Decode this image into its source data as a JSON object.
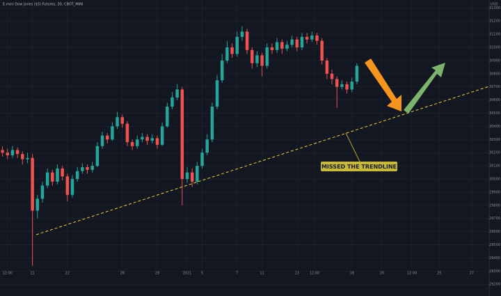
{
  "chart_data": {
    "type": "candlestick",
    "title": "E-mini Dow Jones ($5) Futures, 30, CBOT_MINI",
    "currency": "USD",
    "annotation": "MISSED THE TRENDLINE",
    "up_color": "#26a69a",
    "down_color": "#ef5350",
    "grid": true,
    "open": [
      30220,
      30200,
      30180,
      30220,
      30190,
      30150,
      30160,
      29760,
      29850,
      29950,
      30050,
      29980,
      30080,
      30020,
      29880,
      30000,
      30060,
      30090,
      30070,
      30100,
      30250,
      30330,
      30300,
      30400,
      30470,
      30420,
      30280,
      30250,
      30300,
      30320,
      30290,
      30310,
      30260,
      30400,
      30550,
      30620,
      30680,
      30000,
      30050,
      29980,
      30100,
      30200,
      30300,
      30550,
      30750,
      30900,
      31000,
      30950,
      31080,
      31120,
      30980,
      30880,
      30940,
      30860,
      31000,
      30980,
      31040,
      30990,
      31020,
      31060,
      31000,
      31080,
      31060,
      31090,
      31050,
      30900,
      30800,
      30760,
      30700,
      30720,
      30680,
      30740
    ],
    "close": [
      30200,
      30180,
      30220,
      30190,
      30150,
      30160,
      29760,
      29850,
      29950,
      30050,
      29980,
      30080,
      30020,
      29880,
      30000,
      30060,
      30090,
      30070,
      30100,
      30250,
      30330,
      30300,
      30400,
      30470,
      30420,
      30280,
      30250,
      30300,
      30320,
      30290,
      30310,
      30260,
      30400,
      30550,
      30620,
      30680,
      30000,
      30050,
      29980,
      30100,
      30200,
      30300,
      30550,
      30750,
      30900,
      31000,
      30950,
      31080,
      31120,
      30980,
      30880,
      30940,
      30860,
      31000,
      30980,
      31040,
      30990,
      31020,
      31060,
      31000,
      31080,
      31060,
      31090,
      31050,
      30900,
      30800,
      30760,
      30700,
      30720,
      30680,
      30740,
      30860
    ],
    "high": [
      30250,
      30230,
      30250,
      30240,
      30210,
      30200,
      30190,
      29880,
      29980,
      30080,
      30070,
      30110,
      30100,
      30040,
      30030,
      30090,
      30120,
      30110,
      30130,
      30280,
      30360,
      30350,
      30430,
      30510,
      30490,
      30440,
      30300,
      30330,
      30350,
      30340,
      30340,
      30330,
      30430,
      30580,
      30660,
      30720,
      30700,
      30090,
      30080,
      30130,
      30230,
      30340,
      30580,
      30790,
      30950,
      31050,
      31030,
      31120,
      31160,
      31140,
      31000,
      30970,
      30960,
      31030,
      31030,
      31070,
      31060,
      31050,
      31090,
      31080,
      31110,
      31110,
      31120,
      31110,
      31070,
      30920,
      30830,
      30780,
      30750,
      30740,
      30770,
      30880
    ],
    "low": [
      30170,
      30150,
      30160,
      30160,
      30110,
      30120,
      29340,
      29700,
      29820,
      29930,
      29950,
      29960,
      29990,
      29830,
      29860,
      29980,
      30040,
      30040,
      30050,
      30090,
      30230,
      30270,
      30290,
      30380,
      30390,
      30250,
      30220,
      30230,
      30280,
      30260,
      30270,
      30230,
      30250,
      30390,
      30530,
      30600,
      29800,
      29970,
      29940,
      29960,
      30080,
      30180,
      30280,
      30530,
      30730,
      30880,
      30920,
      30930,
      31050,
      30950,
      30840,
      30850,
      30780,
      30840,
      30950,
      30960,
      30950,
      30970,
      31000,
      30970,
      30980,
      31030,
      31040,
      31020,
      30870,
      30760,
      30720,
      30540,
      30680,
      30650,
      30660,
      30720
    ],
    "xlim": [
      -0.5,
      97.5
    ],
    "xticks": [
      {
        "value": 1,
        "label": "12:00"
      },
      {
        "value": 6,
        "label": "21"
      },
      {
        "value": 13,
        "label": "22"
      },
      {
        "value": 24,
        "label": "28"
      },
      {
        "value": 31,
        "label": "29"
      },
      {
        "value": 37,
        "label": "2021"
      },
      {
        "value": 40,
        "label": "5"
      },
      {
        "value": 47,
        "label": "7"
      },
      {
        "value": 52,
        "label": "11"
      },
      {
        "value": 59,
        "label": "13"
      },
      {
        "value": 62.5,
        "label": "12:00"
      },
      {
        "value": 70,
        "label": "18"
      },
      {
        "value": 76,
        "label": "20"
      },
      {
        "value": 82,
        "label": "12:00"
      },
      {
        "value": 87.5,
        "label": "25"
      },
      {
        "value": 94,
        "label": "27"
      }
    ],
    "ylim": [
      29180,
      31360
    ],
    "yticks": [
      29200,
      29300,
      29400,
      29500,
      29600,
      29700,
      29800,
      29900,
      30000,
      30100,
      30200,
      30300,
      30400,
      30500,
      30600,
      30700,
      30800,
      30900,
      31000,
      31100,
      31200,
      31300
    ]
  }
}
